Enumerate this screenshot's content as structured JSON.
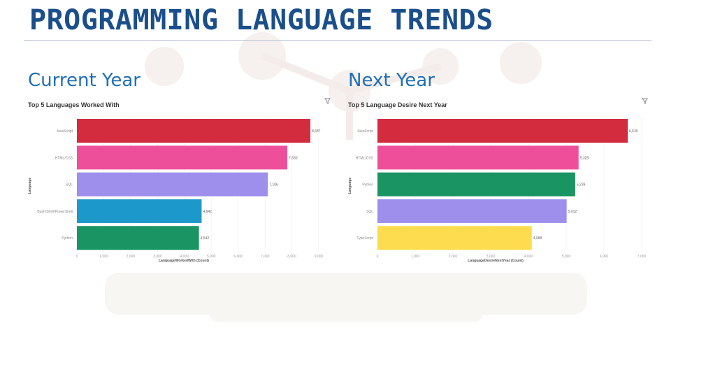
{
  "page": {
    "title": "PROGRAMMING LANGUAGE TRENDS",
    "current_heading": "Current Year",
    "next_heading": "Next Year"
  },
  "icons": {
    "filter": "filter-icon"
  },
  "colors": {
    "title": "#1a4f8b",
    "heading": "#1f6fb5",
    "bar_red": "#d42c3f",
    "bar_pink": "#ee4f9a",
    "bar_purple": "#9f8fec",
    "bar_blue": "#1d98cb",
    "bar_green": "#1b9463",
    "bar_yellow": "#fedc4f"
  },
  "chart_data": [
    {
      "type": "bar",
      "orientation": "horizontal",
      "title": "Top 5 Languages Worked With",
      "xlabel": "LanguageWorkedWith (Count)",
      "ylabel": "Language",
      "categories": [
        "JavaScript",
        "HTML/CSS",
        "SQL",
        "Bash/Shell/PowerShell",
        "Python"
      ],
      "values": [
        8687,
        7830,
        7106,
        4642,
        4542
      ],
      "value_labels": [
        "8,687",
        "7,830",
        "7,106",
        "4,642",
        "4,542"
      ],
      "colors": [
        "#d42c3f",
        "#ee4f9a",
        "#9f8fec",
        "#1d98cb",
        "#1b9463"
      ],
      "xlim": [
        0,
        9000
      ],
      "xticks": [
        "0",
        "1,000",
        "2,000",
        "3,000",
        "4,000",
        "5,000",
        "6,000",
        "7,000",
        "8,000",
        "9,000"
      ],
      "grid": true
    },
    {
      "type": "bar",
      "orientation": "horizontal",
      "title": "Top 5 Language Desire Next Year",
      "xlabel": "LanguageDesireNextYear (Count)",
      "ylabel": "Language",
      "categories": [
        "JavaScript",
        "HTML/CSS",
        "Python",
        "SQL",
        "TypeScript"
      ],
      "values": [
        6630,
        5328,
        5239,
        5012,
        4088
      ],
      "value_labels": [
        "6,630",
        "5,328",
        "5,239",
        "5,012",
        "4,088"
      ],
      "colors": [
        "#d42c3f",
        "#ee4f9a",
        "#1b9463",
        "#9f8fec",
        "#fedc4f"
      ],
      "xlim": [
        0,
        7000
      ],
      "xticks": [
        "0",
        "1,000",
        "2,000",
        "3,000",
        "4,000",
        "5,000",
        "6,000",
        "7,000"
      ],
      "grid": true
    }
  ]
}
